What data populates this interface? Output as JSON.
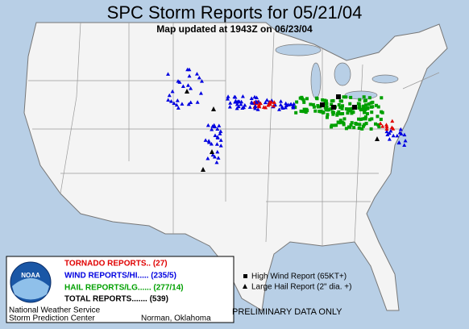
{
  "header": {
    "title": "SPC Storm Reports for 05/21/04",
    "subtitle": "Map updated at 1943Z on 06/23/04"
  },
  "legend": {
    "items": [
      {
        "text": "TORNADO REPORTS.. (27)",
        "color": "#e00000"
      },
      {
        "text": "WIND REPORTS/HI..... (235/5)",
        "color": "#0000e0"
      },
      {
        "text": "HAIL REPORTS/LG...... (277/14)",
        "color": "#00a000"
      }
    ],
    "total": "TOTAL REPORTS....... (539)",
    "logo": "NOAA"
  },
  "key": {
    "items": [
      "High Wind Report (65KT+)",
      "Large Hail Report (2\" dia. +)"
    ],
    "note": "PRELIMINARY DATA ONLY"
  },
  "footer": {
    "line1": "National Weather Service",
    "line2": "Storm Prediction Center",
    "city": "Norman, Oklahoma"
  }
}
